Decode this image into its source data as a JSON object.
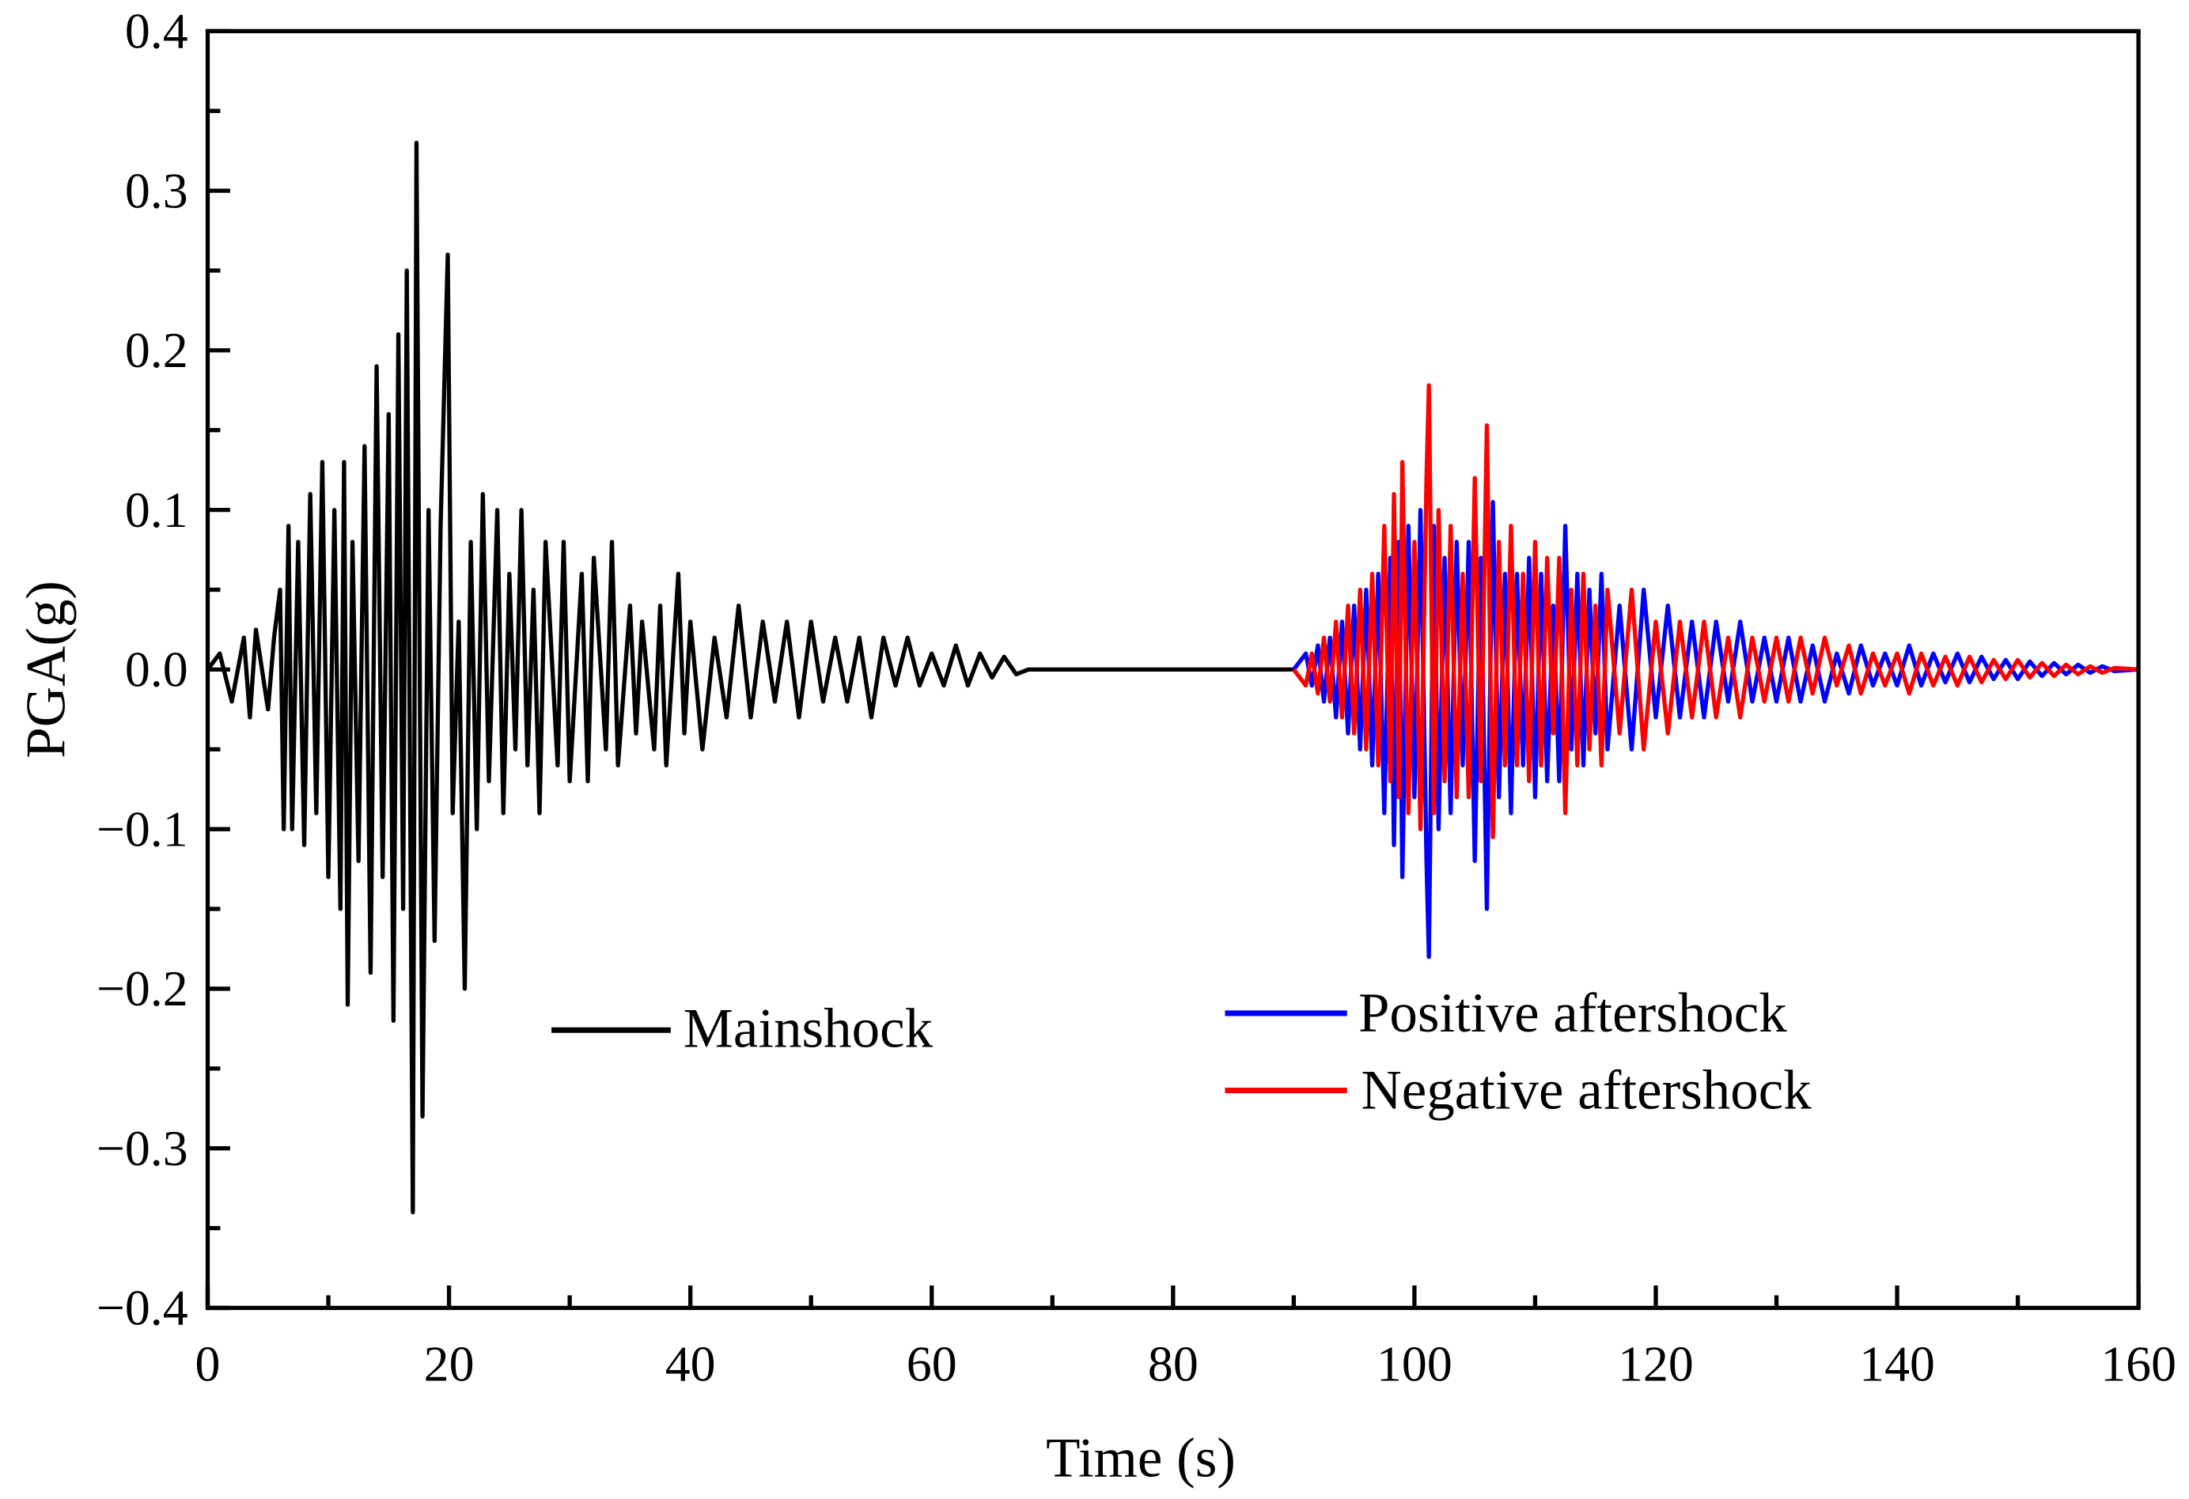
{
  "chart_data": {
    "type": "line",
    "title": "",
    "xlabel": "Time (s)",
    "ylabel": "PGA(g)",
    "xlim": [
      0,
      160
    ],
    "ylim": [
      -0.4,
      0.4
    ],
    "xticks": [
      "0",
      "20",
      "40",
      "60",
      "80",
      "100",
      "120",
      "140",
      "160"
    ],
    "xtick_values": [
      0,
      20,
      40,
      60,
      80,
      100,
      120,
      140,
      160
    ],
    "yticks": [
      "−0.4",
      "−0.3",
      "−0.2",
      "−0.1",
      "0.0",
      "0.1",
      "0.2",
      "0.3",
      "0.4"
    ],
    "ytick_values": [
      -0.4,
      -0.3,
      -0.2,
      -0.1,
      0,
      0.1,
      0.2,
      0.3,
      0.4
    ],
    "grid": false,
    "series": [
      {
        "name": "Mainshock",
        "color": "#000000",
        "legend_group": "left",
        "points": [
          [
            0,
            0
          ],
          [
            1,
            0.01
          ],
          [
            2,
            -0.02
          ],
          [
            3,
            0.02
          ],
          [
            3.5,
            -0.03
          ],
          [
            4,
            0.025
          ],
          [
            5,
            -0.025
          ],
          [
            5.5,
            0.02
          ],
          [
            6,
            0.05
          ],
          [
            6.3,
            -0.1
          ],
          [
            6.7,
            0.09
          ],
          [
            7,
            -0.1
          ],
          [
            7.5,
            0.08
          ],
          [
            8,
            -0.11
          ],
          [
            8.5,
            0.11
          ],
          [
            9,
            -0.09
          ],
          [
            9.5,
            0.13
          ],
          [
            10,
            -0.13
          ],
          [
            10.5,
            0.1
          ],
          [
            11,
            -0.15
          ],
          [
            11.3,
            0.13
          ],
          [
            11.6,
            -0.21
          ],
          [
            12,
            0.08
          ],
          [
            12.5,
            -0.12
          ],
          [
            13,
            0.14
          ],
          [
            13.5,
            -0.19
          ],
          [
            14,
            0.19
          ],
          [
            14.5,
            -0.13
          ],
          [
            15,
            0.16
          ],
          [
            15.4,
            -0.22
          ],
          [
            15.8,
            0.21
          ],
          [
            16.2,
            -0.15
          ],
          [
            16.5,
            0.25
          ],
          [
            17,
            -0.34
          ],
          [
            17.3,
            0.33
          ],
          [
            17.8,
            -0.28
          ],
          [
            18.3,
            0.1
          ],
          [
            18.8,
            -0.17
          ],
          [
            19.3,
            0.09
          ],
          [
            19.9,
            0.26
          ],
          [
            20.3,
            -0.09
          ],
          [
            20.8,
            0.03
          ],
          [
            21.3,
            -0.2
          ],
          [
            21.8,
            0.08
          ],
          [
            22.3,
            -0.1
          ],
          [
            22.8,
            0.11
          ],
          [
            23.3,
            -0.07
          ],
          [
            24,
            0.1
          ],
          [
            24.5,
            -0.09
          ],
          [
            25,
            0.06
          ],
          [
            25.5,
            -0.05
          ],
          [
            26,
            0.1
          ],
          [
            26.5,
            -0.06
          ],
          [
            27,
            0.05
          ],
          [
            27.5,
            -0.09
          ],
          [
            28,
            0.08
          ],
          [
            29,
            -0.06
          ],
          [
            29.5,
            0.08
          ],
          [
            30,
            -0.07
          ],
          [
            31,
            0.06
          ],
          [
            31.5,
            -0.07
          ],
          [
            32,
            0.07
          ],
          [
            33,
            -0.05
          ],
          [
            33.5,
            0.08
          ],
          [
            34,
            -0.06
          ],
          [
            35,
            0.04
          ],
          [
            35.5,
            -0.04
          ],
          [
            36,
            0.03
          ],
          [
            37,
            -0.05
          ],
          [
            37.5,
            0.04
          ],
          [
            38,
            -0.06
          ],
          [
            39,
            0.06
          ],
          [
            39.5,
            -0.04
          ],
          [
            40,
            0.03
          ],
          [
            41,
            -0.05
          ],
          [
            42,
            0.02
          ],
          [
            43,
            -0.03
          ],
          [
            44,
            0.04
          ],
          [
            45,
            -0.03
          ],
          [
            46,
            0.03
          ],
          [
            47,
            -0.02
          ],
          [
            48,
            0.03
          ],
          [
            49,
            -0.03
          ],
          [
            50,
            0.03
          ],
          [
            51,
            -0.02
          ],
          [
            52,
            0.02
          ],
          [
            53,
            -0.02
          ],
          [
            54,
            0.02
          ],
          [
            55,
            -0.03
          ],
          [
            56,
            0.02
          ],
          [
            57,
            -0.01
          ],
          [
            58,
            0.02
          ],
          [
            59,
            -0.01
          ],
          [
            60,
            0.01
          ],
          [
            61,
            -0.01
          ],
          [
            62,
            0.015
          ],
          [
            63,
            -0.01
          ],
          [
            64,
            0.01
          ],
          [
            65,
            -0.005
          ],
          [
            66,
            0.008
          ],
          [
            67,
            -0.003
          ],
          [
            68,
            0
          ],
          [
            90,
            0
          ]
        ]
      },
      {
        "name": "Positive aftershock",
        "color": "#0000FF",
        "legend_group": "right",
        "points": [
          [
            90,
            0
          ],
          [
            91,
            0.01
          ],
          [
            91.5,
            -0.01
          ],
          [
            92,
            0.015
          ],
          [
            92.5,
            -0.02
          ],
          [
            93,
            0.02
          ],
          [
            93.5,
            -0.03
          ],
          [
            94,
            0.03
          ],
          [
            94.5,
            -0.04
          ],
          [
            95,
            0.04
          ],
          [
            95.5,
            -0.05
          ],
          [
            96,
            0.05
          ],
          [
            96.5,
            -0.06
          ],
          [
            97,
            0.06
          ],
          [
            97.5,
            -0.09
          ],
          [
            98,
            0.07
          ],
          [
            98.3,
            -0.11
          ],
          [
            98.7,
            0.08
          ],
          [
            99,
            -0.13
          ],
          [
            99.5,
            0.09
          ],
          [
            100,
            -0.08
          ],
          [
            100.5,
            0.1
          ],
          [
            101,
            -0.12
          ],
          [
            101.2,
            -0.18
          ],
          [
            101.6,
            0.09
          ],
          [
            102,
            -0.1
          ],
          [
            102.5,
            0.07
          ],
          [
            103,
            -0.09
          ],
          [
            103.5,
            0.08
          ],
          [
            104,
            -0.06
          ],
          [
            104.5,
            0.08
          ],
          [
            105,
            -0.12
          ],
          [
            105.5,
            0.07
          ],
          [
            106,
            -0.15
          ],
          [
            106.5,
            0.105
          ],
          [
            107,
            -0.08
          ],
          [
            107.5,
            0.06
          ],
          [
            108,
            -0.09
          ],
          [
            108.5,
            0.06
          ],
          [
            109,
            -0.06
          ],
          [
            109.5,
            0.07
          ],
          [
            110,
            -0.08
          ],
          [
            110.5,
            0.06
          ],
          [
            111,
            -0.07
          ],
          [
            111.5,
            0.04
          ],
          [
            112,
            -0.07
          ],
          [
            112.5,
            0.09
          ],
          [
            113,
            -0.05
          ],
          [
            113.5,
            0.06
          ],
          [
            114,
            -0.06
          ],
          [
            114.5,
            0.05
          ],
          [
            115,
            -0.04
          ],
          [
            115.5,
            0.06
          ],
          [
            116,
            -0.05
          ],
          [
            117,
            0.04
          ],
          [
            118,
            -0.05
          ],
          [
            119,
            0.05
          ],
          [
            120,
            -0.03
          ],
          [
            121,
            0.04
          ],
          [
            122,
            -0.03
          ],
          [
            123,
            0.03
          ],
          [
            124,
            -0.03
          ],
          [
            125,
            0.03
          ],
          [
            126,
            -0.02
          ],
          [
            127,
            0.03
          ],
          [
            128,
            -0.02
          ],
          [
            129,
            0.02
          ],
          [
            130,
            -0.02
          ],
          [
            131,
            0.02
          ],
          [
            132,
            -0.02
          ],
          [
            133,
            0.015
          ],
          [
            134,
            -0.02
          ],
          [
            135,
            0.01
          ],
          [
            136,
            -0.015
          ],
          [
            137,
            0.015
          ],
          [
            138,
            -0.01
          ],
          [
            139,
            0.01
          ],
          [
            140,
            -0.01
          ],
          [
            141,
            0.015
          ],
          [
            142,
            -0.01
          ],
          [
            143,
            0.01
          ],
          [
            144,
            -0.008
          ],
          [
            145,
            0.01
          ],
          [
            146,
            -0.008
          ],
          [
            147,
            0.008
          ],
          [
            148,
            -0.006
          ],
          [
            149,
            0.006
          ],
          [
            150,
            -0.006
          ],
          [
            151,
            0.005
          ],
          [
            152,
            -0.004
          ],
          [
            153,
            0.004
          ],
          [
            154,
            -0.003
          ],
          [
            155,
            0.003
          ],
          [
            156,
            -0.002
          ],
          [
            157,
            0.002
          ],
          [
            158,
            -0.001
          ],
          [
            160,
            0
          ]
        ]
      },
      {
        "name": "Negative aftershock",
        "color": "#FF0000",
        "legend_group": "right",
        "points": [
          [
            90,
            0
          ],
          [
            91,
            -0.01
          ],
          [
            91.5,
            0.01
          ],
          [
            92,
            -0.015
          ],
          [
            92.5,
            0.02
          ],
          [
            93,
            -0.02
          ],
          [
            93.5,
            0.03
          ],
          [
            94,
            -0.03
          ],
          [
            94.5,
            0.04
          ],
          [
            95,
            -0.04
          ],
          [
            95.5,
            0.05
          ],
          [
            96,
            -0.05
          ],
          [
            96.5,
            0.06
          ],
          [
            97,
            -0.06
          ],
          [
            97.5,
            0.09
          ],
          [
            98,
            -0.07
          ],
          [
            98.3,
            0.11
          ],
          [
            98.7,
            -0.08
          ],
          [
            99,
            0.13
          ],
          [
            99.5,
            -0.09
          ],
          [
            100,
            0.08
          ],
          [
            100.5,
            -0.1
          ],
          [
            101,
            0.12
          ],
          [
            101.2,
            0.178
          ],
          [
            101.6,
            -0.09
          ],
          [
            102,
            0.1
          ],
          [
            102.5,
            -0.07
          ],
          [
            103,
            0.09
          ],
          [
            103.5,
            -0.08
          ],
          [
            104,
            0.06
          ],
          [
            104.5,
            -0.08
          ],
          [
            105,
            0.12
          ],
          [
            105.5,
            -0.07
          ],
          [
            106,
            0.153
          ],
          [
            106.5,
            -0.105
          ],
          [
            107,
            0.08
          ],
          [
            107.5,
            -0.06
          ],
          [
            108,
            0.09
          ],
          [
            108.5,
            -0.06
          ],
          [
            109,
            0.06
          ],
          [
            109.5,
            -0.07
          ],
          [
            110,
            0.08
          ],
          [
            110.5,
            -0.06
          ],
          [
            111,
            0.07
          ],
          [
            111.5,
            -0.04
          ],
          [
            112,
            0.07
          ],
          [
            112.5,
            -0.09
          ],
          [
            113,
            0.05
          ],
          [
            113.5,
            -0.06
          ],
          [
            114,
            0.06
          ],
          [
            114.5,
            -0.05
          ],
          [
            115,
            0.04
          ],
          [
            115.5,
            -0.06
          ],
          [
            116,
            0.05
          ],
          [
            117,
            -0.04
          ],
          [
            118,
            0.05
          ],
          [
            119,
            -0.05
          ],
          [
            120,
            0.03
          ],
          [
            121,
            -0.04
          ],
          [
            122,
            0.03
          ],
          [
            123,
            -0.03
          ],
          [
            124,
            0.03
          ],
          [
            125,
            -0.03
          ],
          [
            126,
            0.02
          ],
          [
            127,
            -0.03
          ],
          [
            128,
            0.02
          ],
          [
            129,
            -0.02
          ],
          [
            130,
            0.02
          ],
          [
            131,
            -0.02
          ],
          [
            132,
            0.02
          ],
          [
            133,
            -0.015
          ],
          [
            134,
            0.02
          ],
          [
            135,
            -0.01
          ],
          [
            136,
            0.015
          ],
          [
            137,
            -0.015
          ],
          [
            138,
            0.01
          ],
          [
            139,
            -0.01
          ],
          [
            140,
            0.01
          ],
          [
            141,
            -0.015
          ],
          [
            142,
            0.01
          ],
          [
            143,
            -0.01
          ],
          [
            144,
            0.008
          ],
          [
            145,
            -0.01
          ],
          [
            146,
            0.008
          ],
          [
            147,
            -0.008
          ],
          [
            148,
            0.006
          ],
          [
            149,
            -0.006
          ],
          [
            150,
            0.006
          ],
          [
            151,
            -0.005
          ],
          [
            152,
            0.004
          ],
          [
            153,
            -0.004
          ],
          [
            154,
            0.003
          ],
          [
            155,
            -0.003
          ],
          [
            156,
            0.002
          ],
          [
            157,
            -0.002
          ],
          [
            158,
            0.001
          ],
          [
            160,
            0
          ]
        ]
      }
    ],
    "legend": {
      "entries": [
        "Mainshock",
        "Positive aftershock",
        "Negative aftershock"
      ],
      "placement": "lower-center"
    }
  }
}
